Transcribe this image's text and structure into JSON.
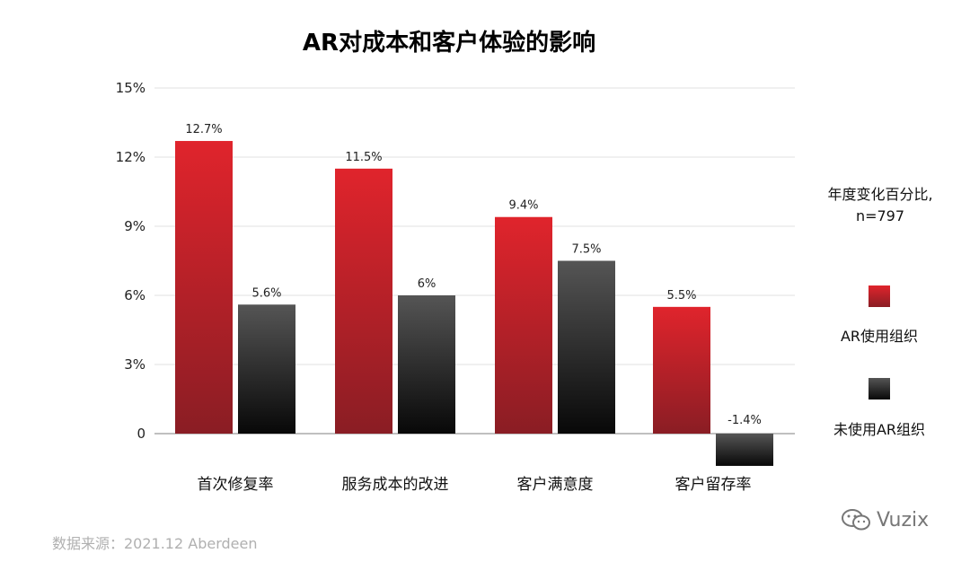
{
  "chart_data": {
    "type": "bar",
    "title": "AR对成本和客户体验的影响",
    "categories": [
      "首次修复率",
      "服务成本的改进",
      "客户满意度",
      "客户留存率"
    ],
    "series": [
      {
        "name": "AR使用组织",
        "values": [
          12.7,
          11.5,
          9.4,
          5.5
        ],
        "labels": [
          "12.7%",
          "11.5%",
          "9.4%",
          "5.5%"
        ],
        "color": "#d7232b"
      },
      {
        "name": "未使用AR组织",
        "values": [
          5.6,
          6.0,
          7.5,
          -1.4
        ],
        "labels": [
          "5.6%",
          "6%",
          "7.5%",
          "-1.4%"
        ],
        "color": "#333333"
      }
    ],
    "yticks": [
      {
        "value": 15,
        "label": "15%"
      },
      {
        "value": 12,
        "label": "12%"
      },
      {
        "value": 9,
        "label": "9%"
      },
      {
        "value": 6,
        "label": "6%"
      },
      {
        "value": 3,
        "label": "3%"
      },
      {
        "value": 0,
        "label": "0"
      }
    ],
    "ylim": [
      -1.4,
      15
    ],
    "grid": true,
    "legend_placement": "right",
    "legend_note_line1": "年度变化百分比,",
    "legend_note_line2": "n=797"
  },
  "source": "数据来源：2021.12 Aberdeen",
  "watermark": "Vuzix"
}
